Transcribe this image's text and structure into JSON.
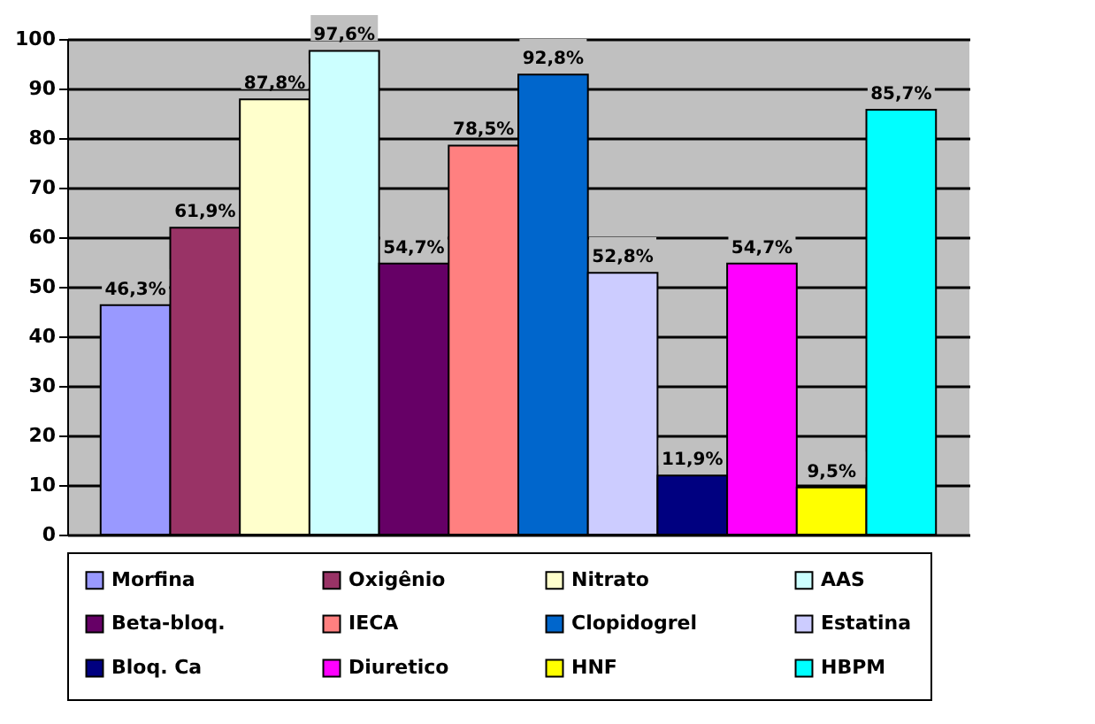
{
  "chart_data": {
    "type": "bar",
    "categories": [
      null
    ],
    "series": [
      {
        "name": "Morfina",
        "color": "#9999ff",
        "values": [
          46.3
        ],
        "value_labels": [
          "46,3%"
        ]
      },
      {
        "name": "Oxigênio",
        "color": "#993366",
        "values": [
          61.9
        ],
        "value_labels": [
          "61,9%"
        ]
      },
      {
        "name": "Nitrato",
        "color": "#ffffcc",
        "values": [
          87.8
        ],
        "value_labels": [
          "87,8%"
        ]
      },
      {
        "name": "AAS",
        "color": "#ccffff",
        "values": [
          97.6
        ],
        "value_labels": [
          "97,6%"
        ]
      },
      {
        "name": "Beta-bloq.",
        "color": "#660066",
        "values": [
          54.7
        ],
        "value_labels": [
          "54,7%"
        ]
      },
      {
        "name": "IECA",
        "color": "#ff8080",
        "values": [
          78.5
        ],
        "value_labels": [
          "78,5%"
        ]
      },
      {
        "name": "Clopidogrel",
        "color": "#0066cc",
        "values": [
          92.8
        ],
        "value_labels": [
          "92,8%"
        ]
      },
      {
        "name": "Estatina",
        "color": "#ccccff",
        "values": [
          52.8
        ],
        "value_labels": [
          "52,8%"
        ]
      },
      {
        "name": "Bloq. Ca",
        "color": "#000080",
        "values": [
          11.9
        ],
        "value_labels": [
          "11,9%"
        ]
      },
      {
        "name": "Diuretico",
        "color": "#ff00ff",
        "values": [
          54.7
        ],
        "value_labels": [
          "54,7%"
        ]
      },
      {
        "name": "HNF",
        "color": "#ffff00",
        "values": [
          9.5
        ],
        "value_labels": [
          "9,5%"
        ]
      },
      {
        "name": "HBPM",
        "color": "#00ffff",
        "values": [
          85.7
        ],
        "value_labels": [
          "85,7%"
        ]
      }
    ],
    "ylim": [
      0,
      100
    ],
    "yticks": [
      0,
      10,
      20,
      30,
      40,
      50,
      60,
      70,
      80,
      90,
      100
    ],
    "grid": "y",
    "legend": "bottom"
  }
}
